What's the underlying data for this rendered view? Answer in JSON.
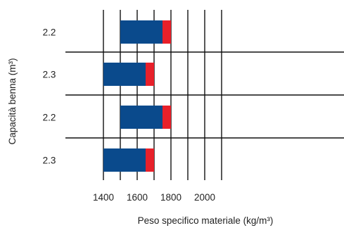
{
  "chart_data": {
    "type": "bar",
    "orientation": "horizontal",
    "stacked": true,
    "categories": [
      "2.2",
      "2.3",
      "2.2",
      "2.3"
    ],
    "series": [
      {
        "start": [
          1500,
          1400,
          1500,
          1400
        ],
        "end": [
          1750,
          1650,
          1750,
          1650
        ],
        "color": "#0a4a8c"
      },
      {
        "start": [
          1750,
          1650,
          1750,
          1650
        ],
        "end": [
          1800,
          1700,
          1800,
          1700
        ],
        "color": "#e8202a"
      }
    ],
    "xlabel": "Peso specifico materiale (kg/m³)",
    "ylabel": "Capacità benna (m³)",
    "xticks": [
      1400,
      1600,
      1800,
      2000
    ],
    "xlim": [
      1300,
      2100
    ],
    "grid": true
  }
}
